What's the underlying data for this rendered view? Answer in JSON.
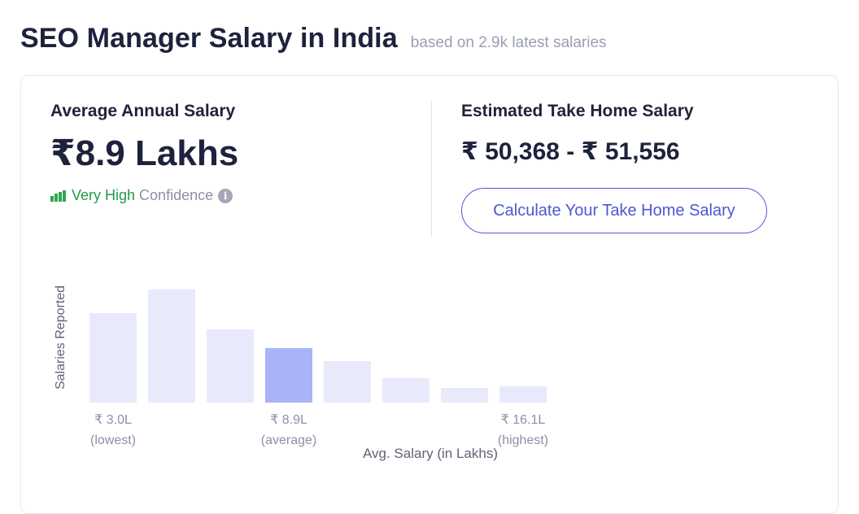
{
  "header": {
    "title": "SEO Manager Salary in India",
    "subtitle": "based on 2.9k latest salaries"
  },
  "average": {
    "label": "Average Annual Salary",
    "value": "₹8.9 Lakhs",
    "confidence_strength": "Very High",
    "confidence_label": "Confidence",
    "info_icon": "info-icon"
  },
  "take_home": {
    "label": "Estimated Take Home Salary",
    "value": "₹ 50,368 - ₹ 51,556",
    "button_label": "Calculate Your Take Home Salary"
  },
  "colors": {
    "bar": "#e8eafc",
    "bar_highlight": "#a9b3f7",
    "accent": "#4b57d3",
    "confidence": "#1f9b4a"
  },
  "chart_data": {
    "type": "bar",
    "ylabel": "Salaries Reported",
    "xlabel": "Avg. Salary (in Lakhs)",
    "values": [
      110,
      139,
      90,
      67,
      51,
      30,
      18,
      20
    ],
    "highlight_index": 3,
    "tick_labels": [
      {
        "index": 0,
        "value": "₹ 3.0L",
        "note": "(lowest)"
      },
      {
        "index": 3,
        "value": "₹ 8.9L",
        "note": "(average)"
      },
      {
        "index": 7,
        "value": "₹ 16.1L",
        "note": "(highest)"
      }
    ]
  }
}
